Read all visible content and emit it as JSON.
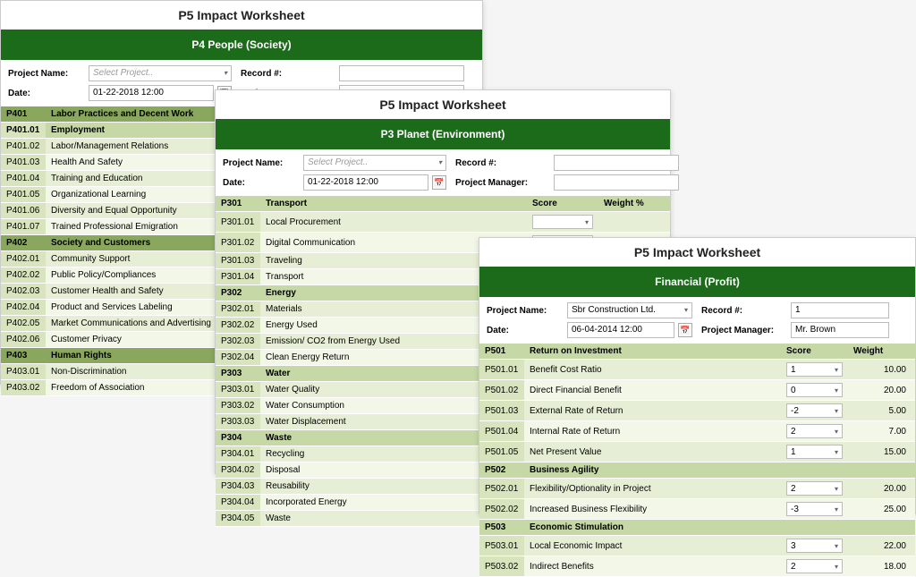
{
  "title": "P5 Impact Worksheet",
  "common_labels": {
    "project_name": "Project Name:",
    "date": "Date:",
    "record_no": "Record #:",
    "project_manager": "Project Manager:",
    "select_project": "Select Project..",
    "score_hdr": "Score",
    "weight_hdr": "Weight",
    "weightpct_hdr": "Weight %"
  },
  "ws1": {
    "banner": "P4 People (Society)",
    "banner_bg": "#1b6b1b",
    "date_value": "01-22-2018 12:00",
    "colors": {
      "hdr": "#8aa85d",
      "subhdr": "#c6d8a6",
      "row_a": "#e6efd5",
      "row_b": "#f2f7e8",
      "code": "#d7e4bd"
    },
    "sections": [
      {
        "type": "hdr",
        "code": "P401",
        "label": "Labor Practices and Decent Work"
      },
      {
        "type": "subhdr",
        "code": "P401.01",
        "label": "Employment"
      },
      {
        "type": "row",
        "code": "P401.02",
        "label": "Labor/Management Relations"
      },
      {
        "type": "row",
        "code": "P401.03",
        "label": "Health And Safety"
      },
      {
        "type": "row",
        "code": "P401.04",
        "label": "Training and Education"
      },
      {
        "type": "row",
        "code": "P401.05",
        "label": "Organizational Learning"
      },
      {
        "type": "row",
        "code": "P401.06",
        "label": "Diversity and Equal Opportunity"
      },
      {
        "type": "row",
        "code": "P401.07",
        "label": "Trained Professional Emigration"
      },
      {
        "type": "hdr",
        "code": "P402",
        "label": "Society and Customers"
      },
      {
        "type": "row",
        "code": "P402.01",
        "label": "Community Support"
      },
      {
        "type": "row",
        "code": "P402.02",
        "label": "Public Policy/Compliances"
      },
      {
        "type": "row",
        "code": "P402.03",
        "label": "Customer Health and Safety"
      },
      {
        "type": "row",
        "code": "P402.04",
        "label": "Product and Services Labeling"
      },
      {
        "type": "row",
        "code": "P402.05",
        "label": "Market Communications and Advertising"
      },
      {
        "type": "row",
        "code": "P402.06",
        "label": "Customer Privacy"
      },
      {
        "type": "hdr",
        "code": "P403",
        "label": "Human Rights"
      },
      {
        "type": "row",
        "code": "P403.01",
        "label": "Non-Discrimination"
      },
      {
        "type": "row",
        "code": "P403.02",
        "label": "Freedom of Association"
      }
    ]
  },
  "ws2": {
    "banner": "P3 Planet (Environment)",
    "banner_bg": "#1b6b1b",
    "date_value": "01-22-2018 12:00",
    "colors": {
      "hdr": "#c6d8a6",
      "row_a": "#e6efd5",
      "row_b": "#f2f7e8",
      "code": "#d7e4bd"
    },
    "sections": [
      {
        "type": "hdr",
        "code": "P301",
        "label": "Transport",
        "has_sel": true
      },
      {
        "type": "row",
        "code": "P301.01",
        "label": "Local Procurement",
        "has_sel": true
      },
      {
        "type": "row",
        "code": "P301.02",
        "label": "Digital Communication",
        "has_sel": true
      },
      {
        "type": "row",
        "code": "P301.03",
        "label": "Traveling"
      },
      {
        "type": "row",
        "code": "P301.04",
        "label": "Transport"
      },
      {
        "type": "hdr",
        "code": "P302",
        "label": "Energy"
      },
      {
        "type": "row",
        "code": "P302.01",
        "label": "Materials"
      },
      {
        "type": "row",
        "code": "P302.02",
        "label": "Energy Used"
      },
      {
        "type": "row",
        "code": "P302.03",
        "label": "Emission/ CO2 from Energy Used"
      },
      {
        "type": "row",
        "code": "P302.04",
        "label": "Clean Energy Return"
      },
      {
        "type": "hdr",
        "code": "P303",
        "label": "Water"
      },
      {
        "type": "row",
        "code": "P303.01",
        "label": "Water Quality"
      },
      {
        "type": "row",
        "code": "P303.02",
        "label": "Water Consumption"
      },
      {
        "type": "row",
        "code": "P303.03",
        "label": "Water Displacement"
      },
      {
        "type": "hdr",
        "code": "P304",
        "label": "Waste"
      },
      {
        "type": "row",
        "code": "P304.01",
        "label": "Recycling"
      },
      {
        "type": "row",
        "code": "P304.02",
        "label": "Disposal"
      },
      {
        "type": "row",
        "code": "P304.03",
        "label": "Reusability"
      },
      {
        "type": "row",
        "code": "P304.04",
        "label": "Incorporated Energy"
      },
      {
        "type": "row",
        "code": "P304.05",
        "label": "Waste"
      }
    ]
  },
  "ws3": {
    "banner": "Financial (Profit)",
    "banner_bg": "#1b6b1b",
    "project_value": "Sbr Construction Ltd.",
    "date_value": "06-04-2014 12:00",
    "record_value": "1",
    "pm_value": "Mr. Brown",
    "colors": {
      "hdr": "#c6d8a6",
      "row_a": "#e6efd5",
      "row_b": "#f2f7e8",
      "code": "#d7e4bd"
    },
    "sections": [
      {
        "type": "hdr",
        "code": "P501",
        "label": "Return on Investment"
      },
      {
        "type": "row",
        "code": "P501.01",
        "label": "Benefit Cost Ratio",
        "score": "1",
        "weight": "10.00"
      },
      {
        "type": "row",
        "code": "P501.02",
        "label": "Direct Financial Benefit",
        "score": "0",
        "weight": "20.00"
      },
      {
        "type": "row",
        "code": "P501.03",
        "label": "External Rate of Return",
        "score": "-2",
        "weight": "5.00"
      },
      {
        "type": "row",
        "code": "P501.04",
        "label": "Internal Rate of Return",
        "score": "2",
        "weight": "7.00"
      },
      {
        "type": "row",
        "code": "P501.05",
        "label": "Net Present Value",
        "score": "1",
        "weight": "15.00"
      },
      {
        "type": "hdr",
        "code": "P502",
        "label": "Business Agility"
      },
      {
        "type": "row",
        "code": "P502.01",
        "label": "Flexibility/Optionality in Project",
        "score": "2",
        "weight": "20.00"
      },
      {
        "type": "row",
        "code": "P502.02",
        "label": "Increased Business Flexibility",
        "score": "-3",
        "weight": "25.00"
      },
      {
        "type": "hdr",
        "code": "P503",
        "label": "Economic Stimulation"
      },
      {
        "type": "row",
        "code": "P503.01",
        "label": "Local Economic Impact",
        "score": "3",
        "weight": "22.00"
      },
      {
        "type": "row",
        "code": "P503.02",
        "label": "Indirect Benefits",
        "score": "2",
        "weight": "18.00"
      }
    ]
  }
}
